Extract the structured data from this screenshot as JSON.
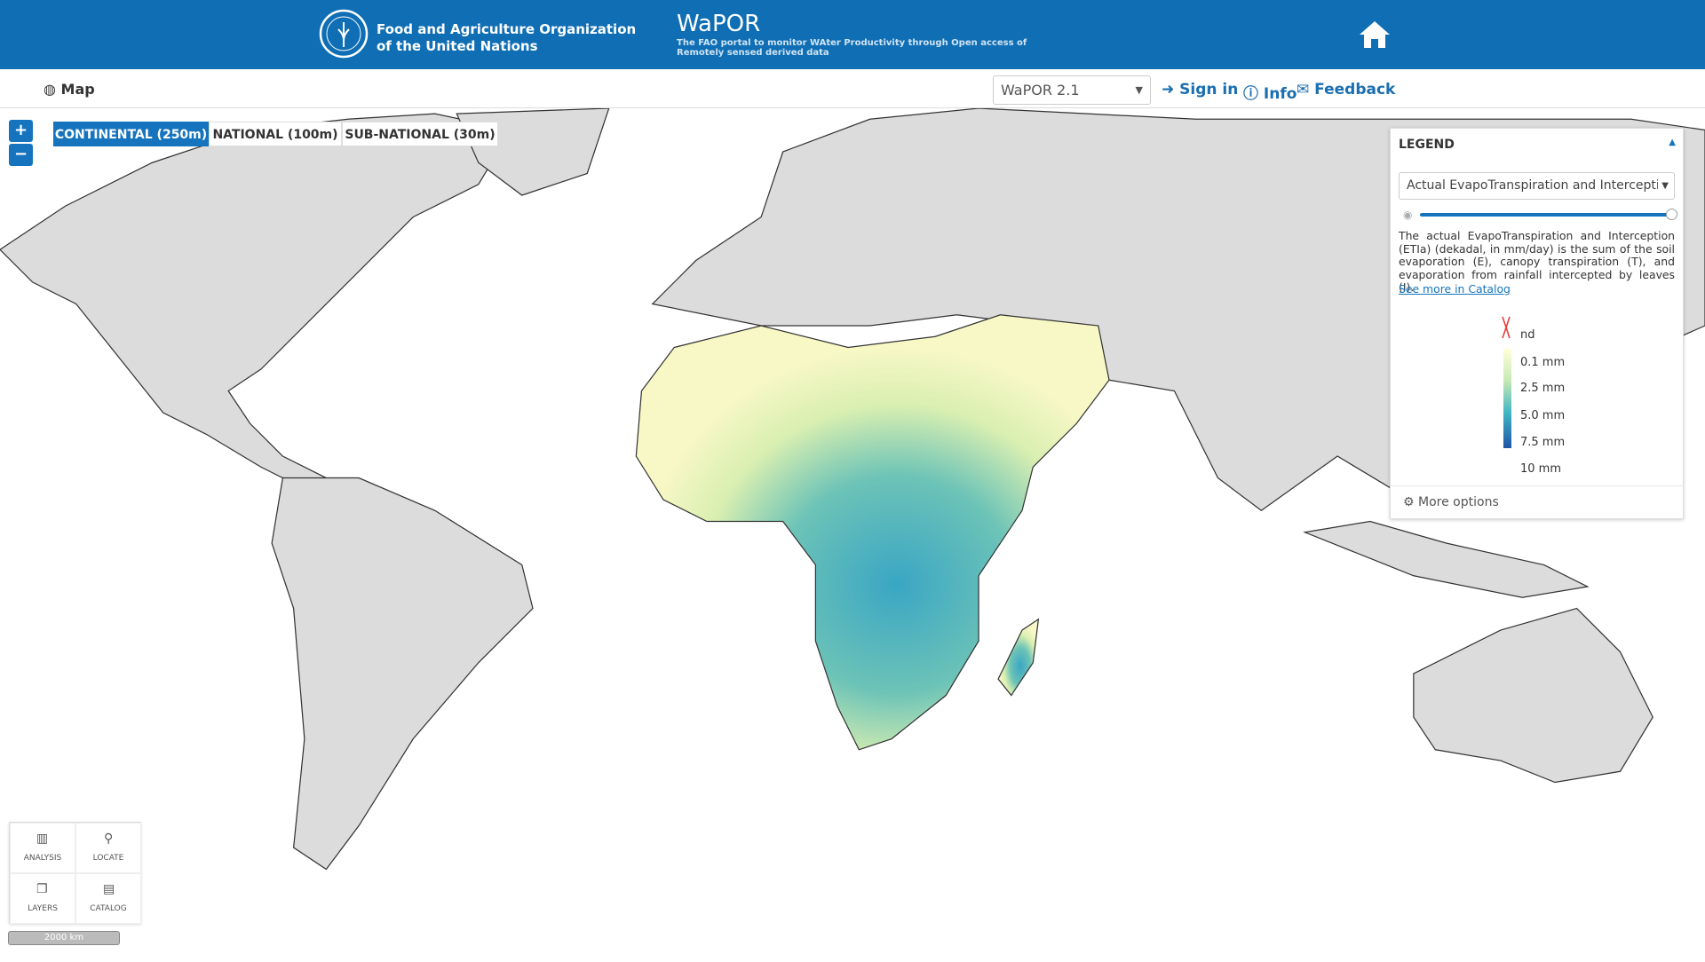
{
  "header": {
    "org_line1": "Food and Agriculture Organization",
    "org_line2": "of the United Nations",
    "title": "WaPOR",
    "subtitle_line1": "The FAO portal to monitor WAter Productivity through Open access of",
    "subtitle_line2": "Remotely sensed derived data"
  },
  "nav": {
    "map": "Map",
    "version": "WaPOR 2.1",
    "sign_in": "Sign in",
    "info": "Info",
    "feedback": "Feedback"
  },
  "zoom": {
    "in": "+",
    "out": "−"
  },
  "tabs": [
    "CONTINENTAL (250m)",
    "NATIONAL (100m)",
    "SUB-NATIONAL (30m)"
  ],
  "legend": {
    "title": "LEGEND",
    "layer": "Actual EvapoTranspiration and Interceptic",
    "description": "The actual EvapoTranspiration and Interception (ETIa) (dekadal, in mm/day) is the sum of the soil evaporation (E), canopy transpiration (T), and evaporation from rainfall intercepted by leaves (I).",
    "link": "See more in Catalog",
    "items": [
      "nd",
      "0.1 mm",
      "2.5 mm",
      "5.0 mm",
      "7.5 mm",
      "10 mm"
    ],
    "more_options": "More options"
  },
  "tools": [
    "ANALYSIS",
    "LOCATE",
    "LAYERS",
    "CATALOG"
  ],
  "scale_bar": "2000 km"
}
